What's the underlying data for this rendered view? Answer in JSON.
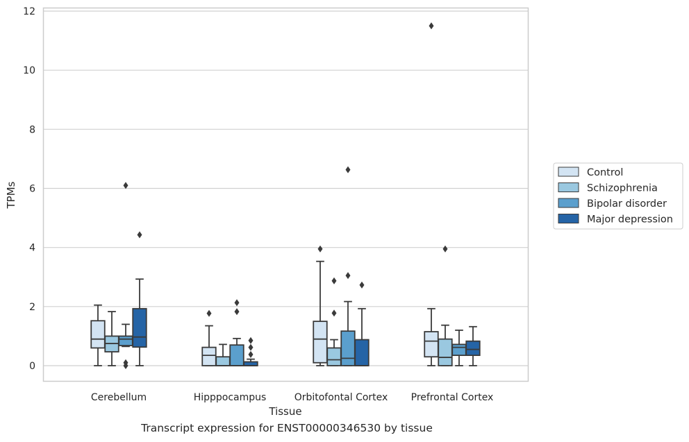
{
  "caption": "Transcript expression for ENST00000346530 by tissue",
  "chart_data": {
    "type": "box",
    "xlabel": "Tissue",
    "ylabel": "TPMs",
    "ylim": [
      -0.55,
      12.1
    ],
    "yticks": [
      0,
      2,
      4,
      6,
      8,
      10,
      12
    ],
    "grid": "horizontal",
    "legend_position": "right",
    "categories": [
      "Cerebellum",
      "Hipppocampus",
      "Orbitofontal Cortex",
      "Prefrontal Cortex"
    ],
    "series": [
      {
        "name": "Control",
        "color": "#d3e4f3",
        "boxes": [
          {
            "whisker_low": 0.0,
            "q1": 0.6,
            "median": 0.9,
            "q3": 1.52,
            "whisker_high": 2.05,
            "outliers": []
          },
          {
            "whisker_low": 0.0,
            "q1": 0.0,
            "median": 0.35,
            "q3": 0.62,
            "whisker_high": 1.35,
            "outliers": [
              1.77
            ]
          },
          {
            "whisker_low": 0.0,
            "q1": 0.1,
            "median": 0.9,
            "q3": 1.5,
            "whisker_high": 3.53,
            "outliers": [
              3.95
            ]
          },
          {
            "whisker_low": 0.0,
            "q1": 0.3,
            "median": 0.83,
            "q3": 1.15,
            "whisker_high": 1.93,
            "outliers": [
              11.5
            ]
          }
        ]
      },
      {
        "name": "Schizophrenia",
        "color": "#9ac8e0",
        "boxes": [
          {
            "whisker_low": 0.0,
            "q1": 0.47,
            "median": 0.75,
            "q3": 1.0,
            "whisker_high": 1.83,
            "outliers": []
          },
          {
            "whisker_low": 0.0,
            "q1": 0.0,
            "median": 0.0,
            "q3": 0.3,
            "whisker_high": 0.72,
            "outliers": []
          },
          {
            "whisker_low": 0.0,
            "q1": 0.0,
            "median": 0.2,
            "q3": 0.6,
            "whisker_high": 0.88,
            "outliers": [
              1.78,
              2.87
            ]
          },
          {
            "whisker_low": 0.0,
            "q1": 0.0,
            "median": 0.28,
            "q3": 0.9,
            "whisker_high": 1.37,
            "outliers": [
              3.95
            ]
          }
        ]
      },
      {
        "name": "Bipolar disorder",
        "color": "#5b9fcd",
        "boxes": [
          {
            "whisker_low": 0.65,
            "q1": 0.68,
            "median": 0.9,
            "q3": 1.0,
            "whisker_high": 1.4,
            "outliers": [
              0.0,
              0.1,
              6.1
            ]
          },
          {
            "whisker_low": 0.0,
            "q1": 0.0,
            "median": 0.0,
            "q3": 0.7,
            "whisker_high": 0.92,
            "outliers": [
              1.83,
              2.13
            ]
          },
          {
            "whisker_low": 0.0,
            "q1": 0.0,
            "median": 0.25,
            "q3": 1.17,
            "whisker_high": 2.17,
            "outliers": [
              3.05,
              6.63
            ]
          },
          {
            "whisker_low": 0.0,
            "q1": 0.35,
            "median": 0.62,
            "q3": 0.72,
            "whisker_high": 1.2,
            "outliers": []
          }
        ]
      },
      {
        "name": "Major depression",
        "color": "#2564a6",
        "boxes": [
          {
            "whisker_low": 0.0,
            "q1": 0.63,
            "median": 0.97,
            "q3": 1.93,
            "whisker_high": 2.93,
            "outliers": [
              4.43
            ]
          },
          {
            "whisker_low": 0.0,
            "q1": 0.0,
            "median": 0.0,
            "q3": 0.13,
            "whisker_high": 0.22,
            "outliers": [
              0.38,
              0.62,
              0.85
            ]
          },
          {
            "whisker_low": 0.0,
            "q1": 0.0,
            "median": 0.0,
            "q3": 0.88,
            "whisker_high": 1.93,
            "outliers": [
              2.73
            ]
          },
          {
            "whisker_low": 0.0,
            "q1": 0.35,
            "median": 0.55,
            "q3": 0.83,
            "whisker_high": 1.32,
            "outliers": []
          }
        ]
      }
    ]
  }
}
